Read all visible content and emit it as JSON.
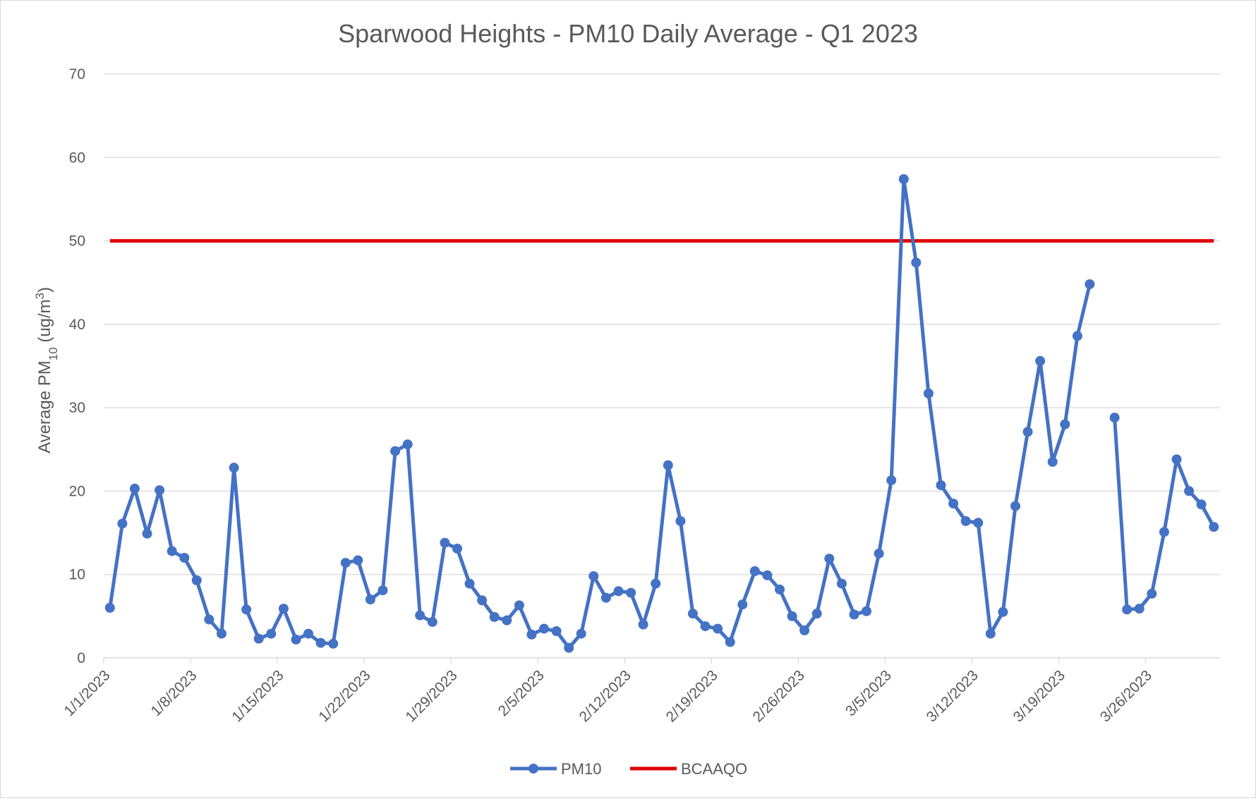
{
  "chart_data": {
    "type": "line",
    "title": "Sparwood Heights - PM10 Daily Average - Q1 2023",
    "ylabel": {
      "main": "Average PM",
      "sub": "10",
      "unit_open": " (ug/m",
      "sup": "3",
      "unit_close": ")"
    },
    "ylim": [
      0,
      70
    ],
    "yticks": [
      0,
      10,
      20,
      30,
      40,
      50,
      60,
      70
    ],
    "x_start": "1/1/2023",
    "x_end": "3/31/2023",
    "xticks": [
      "1/1/2023",
      "1/8/2023",
      "1/15/2023",
      "1/22/2023",
      "1/29/2023",
      "2/5/2023",
      "2/12/2023",
      "2/19/2023",
      "2/26/2023",
      "3/5/2023",
      "3/12/2023",
      "3/19/2023",
      "3/26/2023"
    ],
    "grid": true,
    "legend_position": "bottom",
    "series": [
      {
        "name": "PM10",
        "color": "#4472C4",
        "marker": "circle",
        "x": [
          "1/1/2023",
          "1/2/2023",
          "1/3/2023",
          "1/4/2023",
          "1/5/2023",
          "1/6/2023",
          "1/7/2023",
          "1/8/2023",
          "1/9/2023",
          "1/10/2023",
          "1/11/2023",
          "1/12/2023",
          "1/13/2023",
          "1/14/2023",
          "1/15/2023",
          "1/16/2023",
          "1/17/2023",
          "1/18/2023",
          "1/19/2023",
          "1/20/2023",
          "1/21/2023",
          "1/22/2023",
          "1/23/2023",
          "1/24/2023",
          "1/25/2023",
          "1/26/2023",
          "1/27/2023",
          "1/28/2023",
          "1/29/2023",
          "1/30/2023",
          "1/31/2023",
          "2/1/2023",
          "2/2/2023",
          "2/3/2023",
          "2/4/2023",
          "2/5/2023",
          "2/6/2023",
          "2/7/2023",
          "2/8/2023",
          "2/9/2023",
          "2/10/2023",
          "2/11/2023",
          "2/12/2023",
          "2/13/2023",
          "2/14/2023",
          "2/15/2023",
          "2/16/2023",
          "2/17/2023",
          "2/18/2023",
          "2/19/2023",
          "2/20/2023",
          "2/21/2023",
          "2/22/2023",
          "2/23/2023",
          "2/24/2023",
          "2/25/2023",
          "2/26/2023",
          "2/27/2023",
          "2/28/2023",
          "3/1/2023",
          "3/2/2023",
          "3/3/2023",
          "3/4/2023",
          "3/5/2023",
          "3/6/2023",
          "3/7/2023",
          "3/8/2023",
          "3/9/2023",
          "3/10/2023",
          "3/11/2023",
          "3/12/2023",
          "3/13/2023",
          "3/14/2023",
          "3/15/2023",
          "3/16/2023",
          "3/17/2023",
          "3/18/2023",
          "3/19/2023",
          "3/20/2023",
          "3/21/2023",
          "3/22/2023",
          "3/23/2023",
          "3/24/2023",
          "3/25/2023",
          "3/26/2023",
          "3/27/2023",
          "3/28/2023",
          "3/29/2023",
          "3/30/2023",
          "3/31/2023"
        ],
        "values": [
          6.0,
          16.1,
          20.3,
          14.9,
          20.1,
          12.8,
          12.0,
          9.3,
          4.6,
          2.9,
          22.8,
          5.8,
          2.3,
          2.9,
          5.9,
          2.2,
          2.9,
          1.8,
          1.7,
          11.4,
          11.7,
          7.0,
          8.1,
          24.8,
          25.6,
          5.1,
          4.3,
          13.8,
          13.1,
          8.9,
          6.9,
          4.9,
          4.5,
          6.3,
          2.8,
          3.5,
          3.2,
          1.2,
          2.9,
          9.8,
          7.2,
          8.0,
          7.8,
          4.0,
          8.9,
          23.1,
          16.4,
          5.3,
          3.8,
          3.5,
          1.9,
          6.4,
          10.4,
          9.9,
          8.2,
          5.0,
          3.3,
          5.3,
          11.9,
          8.9,
          5.2,
          5.6,
          12.5,
          21.3,
          57.4,
          47.4,
          31.7,
          20.7,
          18.5,
          16.4,
          16.2,
          2.9,
          5.5,
          18.2,
          27.1,
          35.6,
          23.5,
          28.0,
          38.6,
          44.8,
          null,
          28.8,
          5.8,
          5.9,
          7.7,
          15.1,
          23.8,
          20.0,
          18.4,
          15.7
        ]
      },
      {
        "name": "BCAAQO",
        "color": "#E00000",
        "values_constant": 50
      }
    ]
  }
}
